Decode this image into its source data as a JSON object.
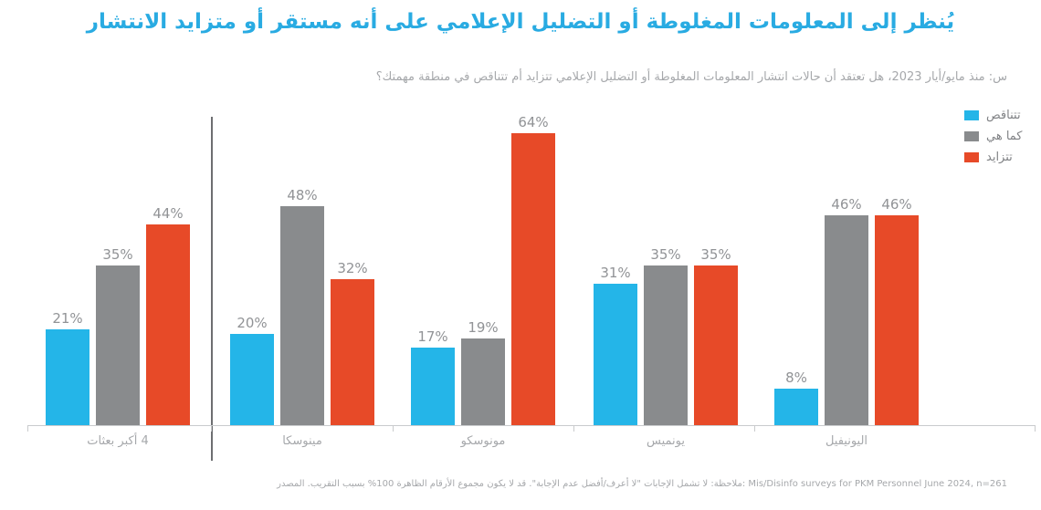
{
  "title": "يُنظر إلى المعلومات المغلوطة أو التضليل الإعلامي على أنه مستقر أو متزايد الانتشار",
  "subtitle": "س: منذ مايو/أيار 2023، هل تعتقد أن حالات انتشار المعلومات المغلوطة أو التضليل الإعلامي تتزايد أم تتناقص في منطقة مهمتك؟",
  "legend": [
    {
      "id": "decreasing",
      "label": "تتناقص",
      "color": "#24B5E8"
    },
    {
      "id": "unchanged",
      "label": "كما هي",
      "color": "#898B8D"
    },
    {
      "id": "increasing",
      "label": "تتزايد",
      "color": "#E74A28"
    }
  ],
  "chart_data": {
    "type": "bar",
    "title": "يُنظر إلى المعلومات المغلوطة أو التضليل الإعلامي على أنه مستقر أو متزايد الانتشار",
    "subtitle_question": "س: منذ مايو/أيار 2023، هل تعتقد أن حالات انتشار المعلومات المغلوطة أو التضليل الإعلامي تتزايد أم تتناقص في منطقة مهمتك؟",
    "categories": [
      "4 أكبر بعثات",
      "مينوسكا",
      "مونوسكو",
      "يونميس",
      "اليونيفيل"
    ],
    "series": [
      {
        "id": "decreasing",
        "name": "تتناقص",
        "color": "#24B5E8",
        "values": [
          21,
          20,
          17,
          31,
          8
        ]
      },
      {
        "id": "unchanged",
        "name": "كما هي",
        "color": "#898B8D",
        "values": [
          35,
          48,
          19,
          35,
          46
        ]
      },
      {
        "id": "increasing",
        "name": "تتزايد",
        "color": "#E74A28",
        "values": [
          44,
          32,
          64,
          35,
          46
        ]
      }
    ],
    "value_suffix": "%",
    "ylim": [
      0,
      67
    ],
    "grid": false,
    "legend_position": "top-right",
    "separator_after_category_index": 0
  },
  "footer": {
    "text": "ملاحظة: لا تشمل الإجابات \"لا أعرف/أفضل عدم الإجابة\". قد لا يكون مجموع الأرقام الظاهرة 100% بسبب التقريب. المصدر: Mis/Disinfo surveys for PKM Personnel June 2024, n=261"
  },
  "colors": {
    "title": "#29ABE2",
    "muted_text": "#A6A8AB",
    "value_label": "#919396",
    "divider": "#6D6E71",
    "axis": "#C9CBCD"
  }
}
